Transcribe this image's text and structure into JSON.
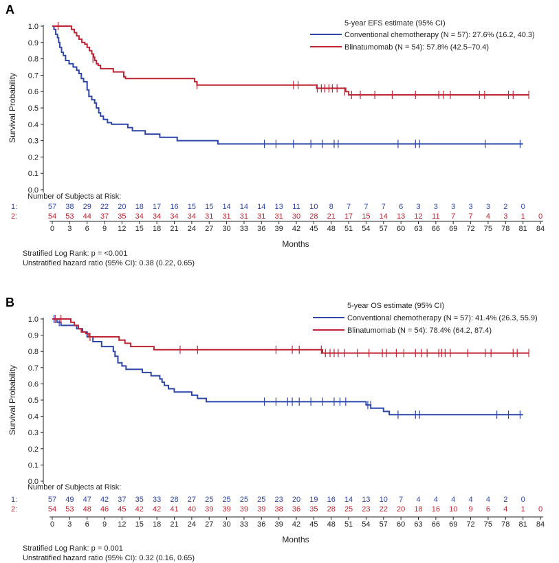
{
  "colors": {
    "chemo": "#2e45a8",
    "blina": "#bd2332",
    "axis": "#222222",
    "text": "#222222"
  },
  "xlabel": "Months",
  "ylabel": "Survival Probability",
  "x_ticks": [
    "0",
    "3",
    "6",
    "9",
    "12",
    "15",
    "18",
    "21",
    "24",
    "27",
    "30",
    "33",
    "36",
    "39",
    "42",
    "45",
    "48",
    "51",
    "54",
    "57",
    "60",
    "63",
    "66",
    "69",
    "72",
    "75",
    "78",
    "81",
    "84"
  ],
  "y_ticks": [
    "0.0",
    "0.1",
    "0.2",
    "0.3",
    "0.4",
    "0.5",
    "0.6",
    "0.7",
    "0.8",
    "0.9",
    "1.0"
  ],
  "chart_data": [
    {
      "panel": "A",
      "type": "line",
      "subtype": "kaplan-meier",
      "ylabel": "Survival Probability",
      "xlabel": "Months",
      "xlim": [
        0,
        84
      ],
      "ylim": [
        0,
        1.0
      ],
      "legend_title": "5-year EFS estimate (95% CI)",
      "series": [
        {
          "key": "chemo",
          "name": "Conventional chemotherapy (N = 57): 27.6% (16.2, 40.3)",
          "steps": [
            [
              0,
              1.0
            ],
            [
              0.3,
              0.98
            ],
            [
              0.6,
              0.95
            ],
            [
              0.9,
              0.93
            ],
            [
              1.1,
              0.9
            ],
            [
              1.3,
              0.87
            ],
            [
              1.6,
              0.84
            ],
            [
              1.9,
              0.82
            ],
            [
              2.3,
              0.79
            ],
            [
              2.9,
              0.77
            ],
            [
              3.6,
              0.75
            ],
            [
              4.2,
              0.73
            ],
            [
              4.6,
              0.71
            ],
            [
              5.0,
              0.68
            ],
            [
              5.4,
              0.66
            ],
            [
              6.0,
              0.61
            ],
            [
              6.3,
              0.57
            ],
            [
              6.8,
              0.55
            ],
            [
              7.3,
              0.53
            ],
            [
              7.6,
              0.5
            ],
            [
              8.0,
              0.47
            ],
            [
              8.3,
              0.45
            ],
            [
              8.8,
              0.43
            ],
            [
              9.5,
              0.41
            ],
            [
              10.2,
              0.4
            ],
            [
              13.0,
              0.38
            ],
            [
              13.8,
              0.36
            ],
            [
              16.0,
              0.34
            ],
            [
              18.5,
              0.32
            ],
            [
              21.5,
              0.3
            ],
            [
              28.5,
              0.28
            ],
            [
              81,
              0.28
            ]
          ],
          "censors": [
            [
              36.5,
              0.28
            ],
            [
              38.5,
              0.28
            ],
            [
              41.5,
              0.28
            ],
            [
              44.5,
              0.28
            ],
            [
              46.5,
              0.28
            ],
            [
              48.5,
              0.28
            ],
            [
              49.2,
              0.28
            ],
            [
              59.5,
              0.28
            ],
            [
              62.5,
              0.28
            ],
            [
              63.2,
              0.28
            ],
            [
              74.5,
              0.28
            ],
            [
              80.5,
              0.28
            ]
          ]
        },
        {
          "key": "blina",
          "name": "Blinatumomab (N = 54): 57.8% (42.5–70.4)",
          "steps": [
            [
              0,
              1.0
            ],
            [
              3.3,
              0.98
            ],
            [
              3.8,
              0.96
            ],
            [
              4.2,
              0.94
            ],
            [
              4.6,
              0.92
            ],
            [
              5.1,
              0.9
            ],
            [
              5.6,
              0.89
            ],
            [
              6.0,
              0.87
            ],
            [
              6.4,
              0.85
            ],
            [
              6.8,
              0.83
            ],
            [
              7.1,
              0.81
            ],
            [
              7.3,
              0.79
            ],
            [
              7.6,
              0.77
            ],
            [
              7.9,
              0.76
            ],
            [
              8.3,
              0.74
            ],
            [
              10.5,
              0.72
            ],
            [
              12.3,
              0.69
            ],
            [
              12.6,
              0.68
            ],
            [
              24.5,
              0.66
            ],
            [
              24.9,
              0.64
            ],
            [
              45.5,
              0.62
            ],
            [
              50.5,
              0.6
            ],
            [
              51,
              0.58
            ],
            [
              82,
              0.58
            ]
          ],
          "censors": [
            [
              1.0,
              1.0
            ],
            [
              7.0,
              0.8
            ],
            [
              24.9,
              0.64
            ],
            [
              41.5,
              0.64
            ],
            [
              42.3,
              0.64
            ],
            [
              45.6,
              0.62
            ],
            [
              46.3,
              0.62
            ],
            [
              46.9,
              0.62
            ],
            [
              47.6,
              0.62
            ],
            [
              48.2,
              0.62
            ],
            [
              49.0,
              0.62
            ],
            [
              50.3,
              0.6
            ],
            [
              51.5,
              0.58
            ],
            [
              53.0,
              0.58
            ],
            [
              55.5,
              0.58
            ],
            [
              58.5,
              0.58
            ],
            [
              62.5,
              0.58
            ],
            [
              66.5,
              0.58
            ],
            [
              67.3,
              0.58
            ],
            [
              68.5,
              0.58
            ],
            [
              73.5,
              0.58
            ],
            [
              74.4,
              0.58
            ],
            [
              78.5,
              0.58
            ],
            [
              79.3,
              0.58
            ],
            [
              82,
              0.58
            ]
          ]
        }
      ],
      "risk_table": {
        "title": "Number of Subjects at Risk:",
        "rows": [
          {
            "key": "chemo",
            "label": "1:",
            "values": [
              "57",
              "38",
              "29",
              "22",
              "20",
              "18",
              "17",
              "16",
              "15",
              "15",
              "14",
              "14",
              "14",
              "13",
              "11",
              "10",
              "8",
              "7",
              "7",
              "7",
              "6",
              "3",
              "3",
              "3",
              "3",
              "3",
              "2",
              "0"
            ]
          },
          {
            "key": "blina",
            "label": "2:",
            "values": [
              "54",
              "53",
              "44",
              "37",
              "35",
              "34",
              "34",
              "34",
              "34",
              "31",
              "31",
              "31",
              "31",
              "31",
              "30",
              "28",
              "21",
              "17",
              "15",
              "14",
              "13",
              "12",
              "11",
              "7",
              "7",
              "4",
              "3",
              "1",
              "0"
            ]
          }
        ]
      },
      "notes": [
        "Stratified Log Rank: p = <0.001",
        "Unstratified hazard ratio (95% CI): 0.38 (0.22, 0.65)"
      ]
    },
    {
      "panel": "B",
      "type": "line",
      "subtype": "kaplan-meier",
      "ylabel": "Survival Probability",
      "xlabel": "Months",
      "xlim": [
        0,
        84
      ],
      "ylim": [
        0,
        1.0
      ],
      "legend_title": "5-year OS estimate (95% CI)",
      "series": [
        {
          "key": "chemo",
          "name": "Conventional chemotherapy (N = 57): 41.4% (26.3, 55.9)",
          "steps": [
            [
              0,
              1.0
            ],
            [
              0.8,
              0.98
            ],
            [
              1.5,
              0.96
            ],
            [
              4.2,
              0.94
            ],
            [
              5.2,
              0.92
            ],
            [
              6.0,
              0.89
            ],
            [
              7.0,
              0.86
            ],
            [
              8.5,
              0.83
            ],
            [
              10.5,
              0.8
            ],
            [
              10.8,
              0.77
            ],
            [
              11.3,
              0.73
            ],
            [
              12.0,
              0.71
            ],
            [
              12.7,
              0.69
            ],
            [
              15.5,
              0.67
            ],
            [
              17.0,
              0.65
            ],
            [
              18.5,
              0.63
            ],
            [
              18.9,
              0.61
            ],
            [
              19.3,
              0.59
            ],
            [
              20.0,
              0.57
            ],
            [
              21.0,
              0.55
            ],
            [
              24.0,
              0.53
            ],
            [
              25.0,
              0.51
            ],
            [
              26.5,
              0.49
            ],
            [
              54.0,
              0.47
            ],
            [
              54.8,
              0.45
            ],
            [
              57.0,
              0.43
            ],
            [
              58.0,
              0.41
            ],
            [
              81,
              0.41
            ]
          ],
          "censors": [
            [
              0.3,
              1.0
            ],
            [
              1.2,
              0.98
            ],
            [
              36.5,
              0.49
            ],
            [
              38.5,
              0.49
            ],
            [
              40.5,
              0.49
            ],
            [
              41.3,
              0.49
            ],
            [
              42.5,
              0.49
            ],
            [
              44.5,
              0.49
            ],
            [
              46.5,
              0.49
            ],
            [
              48.5,
              0.49
            ],
            [
              49.5,
              0.49
            ],
            [
              50.5,
              0.49
            ],
            [
              54.3,
              0.47
            ],
            [
              54.8,
              0.47
            ],
            [
              59.5,
              0.41
            ],
            [
              62.5,
              0.41
            ],
            [
              63.2,
              0.41
            ],
            [
              76.5,
              0.41
            ],
            [
              78.5,
              0.41
            ],
            [
              80.5,
              0.41
            ]
          ]
        },
        {
          "key": "blina",
          "name": "Blinatumomab (N = 54): 78.4% (64.2, 87.4)",
          "steps": [
            [
              0,
              1.0
            ],
            [
              3.2,
              0.98
            ],
            [
              3.8,
              0.96
            ],
            [
              4.5,
              0.94
            ],
            [
              5.0,
              0.92
            ],
            [
              5.8,
              0.91
            ],
            [
              6.3,
              0.89
            ],
            [
              11.5,
              0.87
            ],
            [
              12.5,
              0.85
            ],
            [
              13.5,
              0.83
            ],
            [
              17.5,
              0.81
            ],
            [
              46.5,
              0.79
            ],
            [
              82,
              0.79
            ]
          ],
          "censors": [
            [
              0.5,
              1.0
            ],
            [
              1.5,
              1.0
            ],
            [
              6.5,
              0.89
            ],
            [
              22.0,
              0.81
            ],
            [
              25.0,
              0.81
            ],
            [
              38.5,
              0.81
            ],
            [
              41.3,
              0.81
            ],
            [
              42.5,
              0.81
            ],
            [
              46.3,
              0.81
            ],
            [
              47.0,
              0.79
            ],
            [
              47.8,
              0.79
            ],
            [
              48.5,
              0.79
            ],
            [
              49.2,
              0.79
            ],
            [
              50.3,
              0.79
            ],
            [
              52.5,
              0.79
            ],
            [
              54.5,
              0.79
            ],
            [
              56.8,
              0.79
            ],
            [
              57.5,
              0.79
            ],
            [
              59.2,
              0.79
            ],
            [
              60.5,
              0.79
            ],
            [
              62.5,
              0.79
            ],
            [
              63.5,
              0.79
            ],
            [
              64.5,
              0.79
            ],
            [
              66.5,
              0.79
            ],
            [
              67.0,
              0.79
            ],
            [
              67.6,
              0.79
            ],
            [
              68.5,
              0.79
            ],
            [
              71.5,
              0.79
            ],
            [
              74.5,
              0.79
            ],
            [
              75.5,
              0.79
            ],
            [
              79.3,
              0.79
            ],
            [
              80.0,
              0.79
            ],
            [
              82,
              0.79
            ]
          ]
        }
      ],
      "risk_table": {
        "title": "Number of Subjects at Risk:",
        "rows": [
          {
            "key": "chemo",
            "label": "1:",
            "values": [
              "57",
              "49",
              "47",
              "42",
              "37",
              "35",
              "33",
              "28",
              "27",
              "25",
              "25",
              "25",
              "25",
              "23",
              "20",
              "19",
              "16",
              "14",
              "13",
              "10",
              "7",
              "4",
              "4",
              "4",
              "4",
              "4",
              "2",
              "0"
            ]
          },
          {
            "key": "blina",
            "label": "2:",
            "values": [
              "54",
              "53",
              "48",
              "46",
              "45",
              "42",
              "42",
              "41",
              "40",
              "39",
              "39",
              "39",
              "39",
              "38",
              "36",
              "35",
              "28",
              "25",
              "23",
              "22",
              "20",
              "18",
              "16",
              "10",
              "9",
              "6",
              "4",
              "1",
              "0"
            ]
          }
        ]
      },
      "notes": [
        "Stratified Log Rank: p = 0.001",
        "Unstratified hazard ratio (95% CI): 0.32 (0.16, 0.65)"
      ]
    }
  ]
}
